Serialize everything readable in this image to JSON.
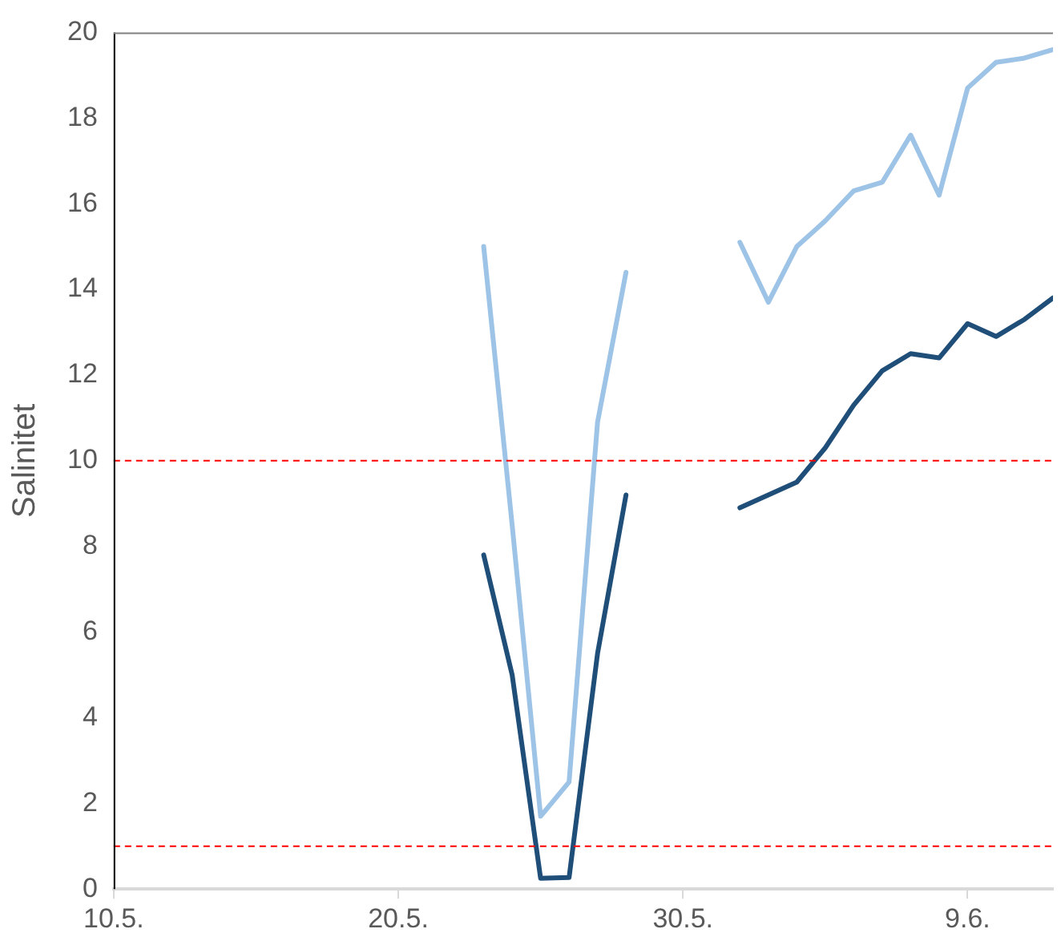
{
  "chart_data": {
    "type": "line",
    "ylabel": "Salinitet",
    "x": [
      "--05-23",
      "--05-24",
      "--05-25",
      "--05-26",
      "--05-27",
      "--05-28",
      "--05-29",
      "--05-30",
      "--05-31",
      "--06-01",
      "--06-02",
      "--06-03",
      "--06-04",
      "--06-05",
      "--06-06",
      "--06-07",
      "--06-08",
      "--06-09",
      "--06-10",
      "--06-11",
      "--06-12"
    ],
    "series": [
      {
        "color": "#9dc3e6",
        "values": [
          15.0,
          8.5,
          1.7,
          2.5,
          10.9,
          14.4,
          null,
          null,
          null,
          15.1,
          13.7,
          15.0,
          15.6,
          16.3,
          16.5,
          17.6,
          16.2,
          18.7,
          19.3,
          19.4,
          19.6
        ]
      },
      {
        "color": "#1f4e79",
        "values": [
          7.8,
          5.0,
          0.25,
          0.27,
          5.5,
          9.2,
          null,
          null,
          null,
          8.9,
          9.2,
          9.5,
          10.3,
          11.3,
          12.1,
          12.5,
          12.4,
          13.2,
          12.9,
          13.3,
          13.8
        ]
      }
    ],
    "xlim": [
      "--05-10",
      "--06-12"
    ],
    "xticks": [
      {
        "value": "--05-10",
        "label": "10.5."
      },
      {
        "value": "--05-20",
        "label": "20.5."
      },
      {
        "value": "--05-30",
        "label": "30.5."
      },
      {
        "value": "--06-09",
        "label": "9.6."
      }
    ],
    "ylim": [
      0,
      20
    ],
    "yticks": [
      0,
      2,
      4,
      6,
      8,
      10,
      12,
      14,
      16,
      18,
      20
    ],
    "ref_lines": [
      {
        "axis": "y",
        "value": 10,
        "color": "#ff0000",
        "line_style": "dashed"
      },
      {
        "axis": "y",
        "value": 1,
        "color": "#ff0000",
        "line_style": "dashed"
      }
    ],
    "grid": false,
    "legend": false,
    "marker": "none",
    "line_style": "solid"
  }
}
